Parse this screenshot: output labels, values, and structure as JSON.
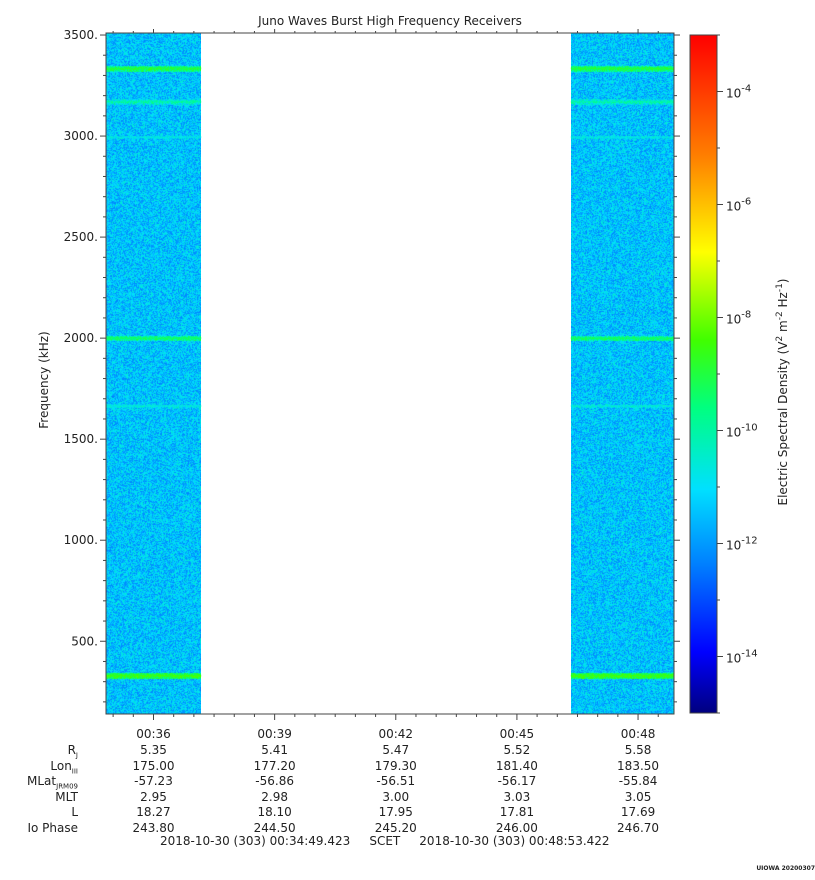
{
  "chart_data": {
    "type": "heatmap",
    "title": "Juno Waves Burst High Frequency Receivers",
    "ylabel": "Frequency (kHz)",
    "ylim": [
      140,
      3510
    ],
    "y_ticks": [
      "500.",
      "1000.",
      "1500.",
      "2000.",
      "2500.",
      "3000.",
      "3500."
    ],
    "y_tick_values": [
      500,
      1000,
      1500,
      2000,
      2500,
      3000,
      3500
    ],
    "x_ticks": [
      "00:36",
      "00:39",
      "00:42",
      "00:45",
      "00:48"
    ],
    "time_start": "00:34:49.423",
    "time_end": "00:48:53.422",
    "data_intervals": [
      [
        "00:34:49",
        "00:37:11"
      ],
      [
        "00:46:20",
        "00:48:53"
      ]
    ],
    "data_gap": [
      "00:37:11",
      "00:46:20"
    ],
    "background_level_log": -11.8,
    "emission_lines_khz": [
      {
        "freq": 330,
        "level_log": -9.6
      },
      {
        "freq": 2000,
        "level_log": -10.3
      },
      {
        "freq": 3170,
        "level_log": -10.8
      },
      {
        "freq": 3335,
        "level_log": -10.0
      },
      {
        "freq": 1665,
        "level_log": -11.2
      },
      {
        "freq": 2995,
        "level_log": -11.3
      }
    ],
    "colorbar": {
      "label": "Electric Spectral Density (V² m⁻² Hz⁻¹)",
      "label_prefix": "Electric Spectral Density (V",
      "label_mid1": " m",
      "label_mid2": " Hz",
      "label_suffix": ")",
      "sup1": "2",
      "sup2": "-2",
      "sup3": "-1",
      "min_log": -15,
      "max_log": -3,
      "tick_exponents": [
        "-4",
        "-6",
        "-8",
        "-10",
        "-12",
        "-14"
      ],
      "tick_values_log": [
        -4,
        -6,
        -8,
        -10,
        -12,
        -14
      ],
      "tick_base": "10"
    },
    "ephemeris": {
      "rows": [
        {
          "name": "R",
          "sub": "J",
          "values": [
            "5.35",
            "5.41",
            "5.47",
            "5.52",
            "5.58"
          ]
        },
        {
          "name": "Lon",
          "sub": "III",
          "values": [
            "175.00",
            "177.20",
            "179.30",
            "181.40",
            "183.50"
          ]
        },
        {
          "name": "MLat",
          "sub": "JRM09",
          "values": [
            "-57.23",
            "-56.86",
            "-56.51",
            "-56.17",
            "-55.84"
          ]
        },
        {
          "name": "MLT",
          "sub": "",
          "values": [
            "2.95",
            "2.98",
            "3.00",
            "3.03",
            "3.05"
          ]
        },
        {
          "name": "L",
          "sub": "",
          "values": [
            "18.27",
            "18.10",
            "17.95",
            "17.81",
            "17.69"
          ]
        },
        {
          "name": "Io Phase",
          "sub": "",
          "values": [
            "243.80",
            "244.50",
            "245.20",
            "246.00",
            "246.70"
          ]
        }
      ]
    },
    "scet_range": "2018-10-30 (303) 00:34:49.423     SCET     2018-10-30 (303) 00:48:53.422",
    "credit": "UIOWA 20200307"
  }
}
